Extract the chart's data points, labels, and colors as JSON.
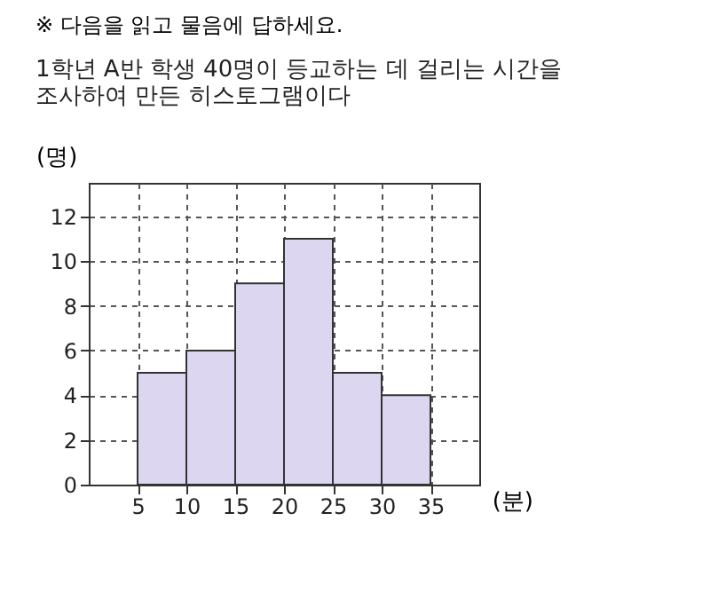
{
  "chart_data": {
    "type": "histogram",
    "title": "※ 다음을 읽고 물음에 답하세요.",
    "subtitle": "1학년 A반 학생 40명이 등교하는 데 걸리는 시간을 조사하여 만든 히스토그램이다",
    "xlabel": "(분)",
    "ylabel": "(명)",
    "bins": [
      5,
      10,
      15,
      20,
      25,
      30,
      35
    ],
    "values": [
      5,
      6,
      9,
      11,
      5,
      4
    ],
    "color": "#dcd6f0",
    "xlim": [
      0,
      40
    ],
    "xticks": [
      5,
      10,
      15,
      20,
      25,
      30,
      35
    ],
    "ylim": [
      0,
      13.5
    ],
    "yticks": [
      0,
      2,
      4,
      6,
      8,
      10,
      12
    ],
    "grid": true,
    "line_style": "dashed"
  }
}
